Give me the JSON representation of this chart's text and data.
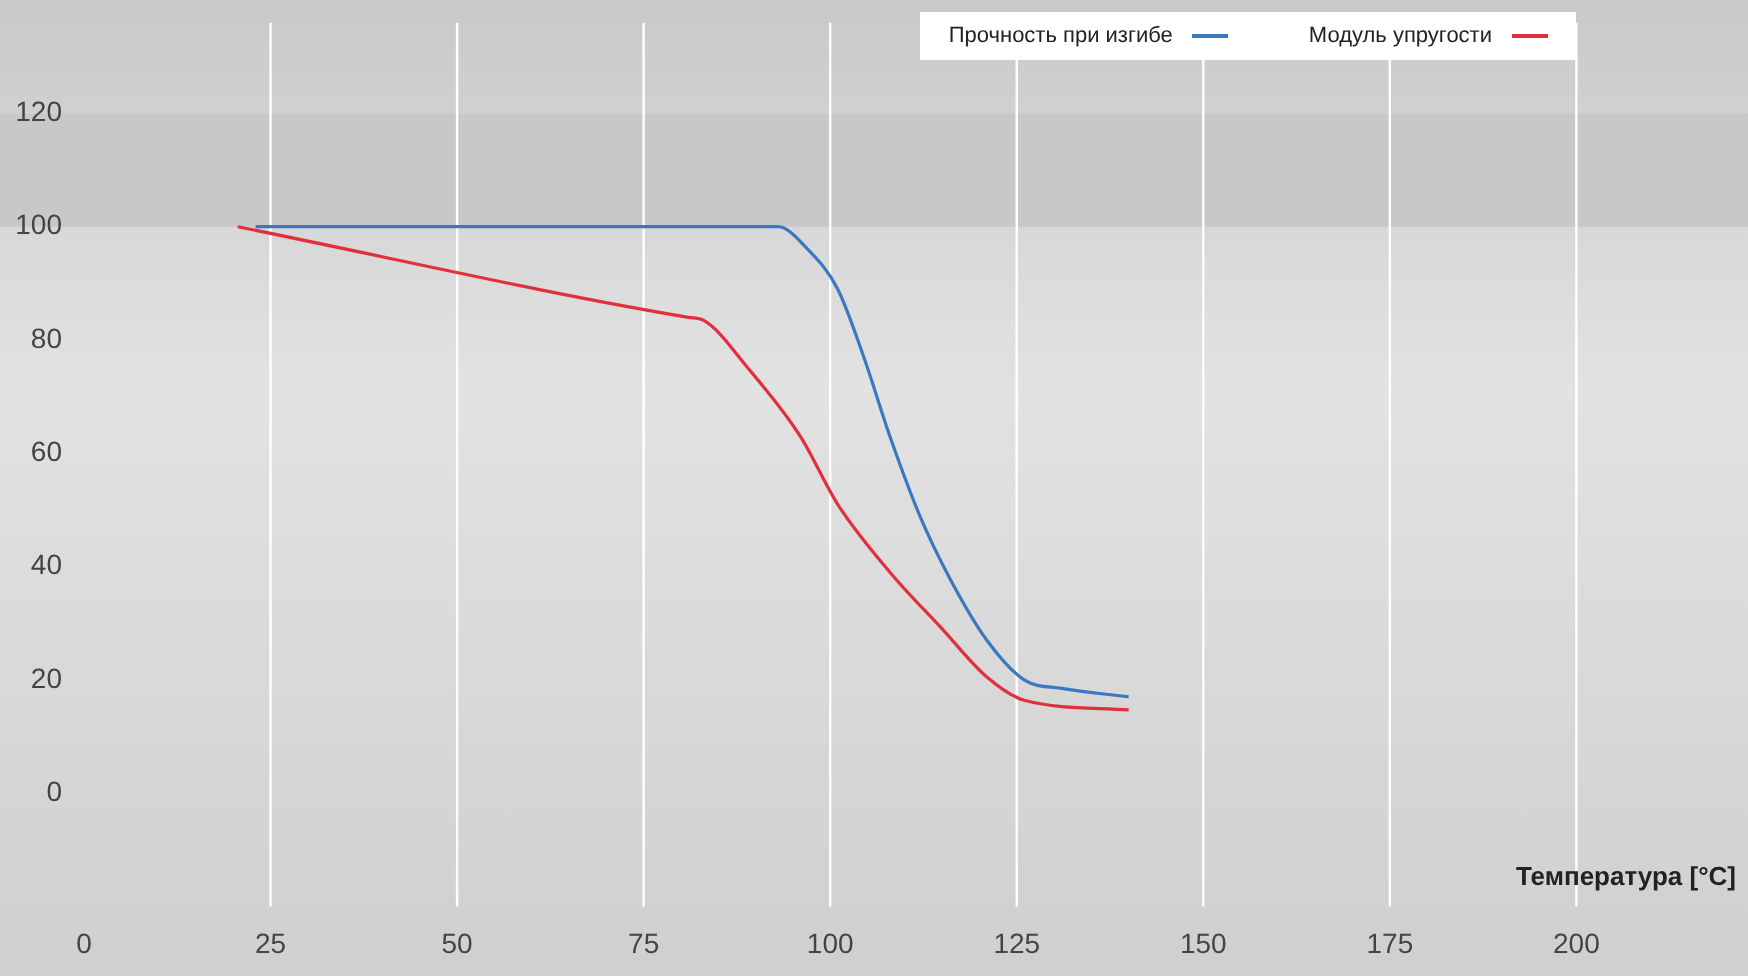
{
  "chart_data": {
    "type": "line",
    "xlabel": "Температура [°C]",
    "xlim": [
      0,
      223
    ],
    "xticks": [
      0,
      25,
      50,
      75,
      100,
      125,
      150,
      175,
      200
    ],
    "ylim": [
      -20,
      136
    ],
    "yticks": [
      0,
      20,
      40,
      60,
      80,
      100,
      120
    ],
    "grid": "x",
    "legend": "top right",
    "marker": "none",
    "line_style": "solid",
    "bands": [
      {
        "axis": "y",
        "from": 100,
        "to": 120,
        "color": "#c8c8c8"
      }
    ],
    "series": [
      {
        "name": "Прочность при изгибе",
        "color": "#3a78c2",
        "x": [
          23,
          93,
          97,
          101,
          104.5,
          108,
          112,
          116,
          121,
          126,
          131,
          140
        ],
        "values": [
          100,
          100,
          96,
          89,
          77,
          63,
          49,
          38,
          27,
          20,
          18.5,
          17
        ]
      },
      {
        "name": "Модуль упругости",
        "color": "#e0303c",
        "x": [
          20.6,
          81,
          83,
          89,
          96,
          101,
          108,
          115,
          121,
          126,
          140
        ],
        "values": [
          100,
          84,
          83.5,
          75,
          63,
          51,
          39,
          29,
          20.5,
          16.4,
          14.7
        ]
      }
    ]
  }
}
